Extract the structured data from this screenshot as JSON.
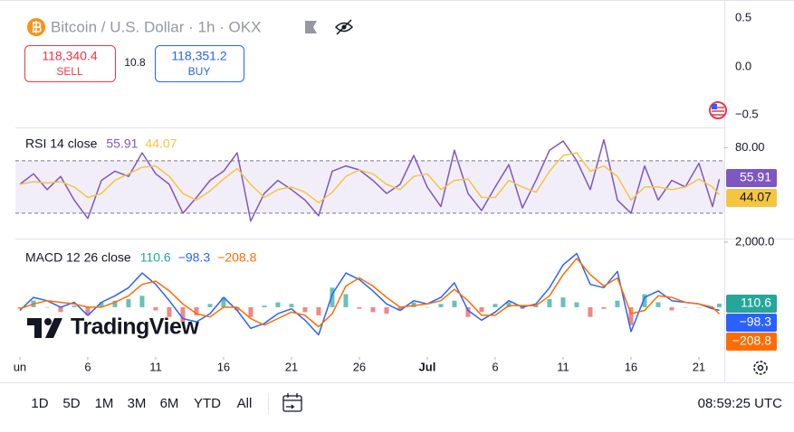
{
  "header": {
    "symbol": "Bitcoin / U.S. Dollar · 1h · OKX",
    "sell_price": "118,340.4",
    "sell_label": "SELL",
    "spread": "10.8",
    "buy_price": "118,351.2",
    "buy_label": "BUY"
  },
  "price_scale_labels": [
    "0.5",
    "0.0",
    "−0.5"
  ],
  "logo": "TradingView",
  "timeframes": [
    "1D",
    "5D",
    "1M",
    "3M",
    "6M",
    "YTD",
    "All"
  ],
  "clock": "08:59:25 UTC",
  "chart_data": [
    {
      "type": "line",
      "title": "RSI 14 close",
      "x": [
        1,
        2,
        3,
        4,
        5,
        6,
        7,
        8,
        9,
        10,
        11,
        12,
        13,
        14,
        15,
        16,
        17,
        18,
        19,
        20,
        21,
        22,
        23,
        24,
        25,
        26,
        27,
        28,
        29,
        30,
        31,
        32,
        33,
        34,
        35,
        36,
        37,
        38,
        39,
        40,
        41,
        42,
        43,
        44,
        45,
        46,
        47,
        48,
        49,
        50,
        51,
        52,
        52.5
      ],
      "xlim": [
        0.67,
        52.87
      ],
      "ylim": [
        12,
        94
      ],
      "yticks": [
        {
          "value": 80,
          "label": "80.00"
        }
      ],
      "bands": [
        70,
        30
      ],
      "band_color": "#7e57c2",
      "series": [
        {
          "name": "RSI",
          "color": "#7e57c2",
          "values": [
            52,
            60,
            48,
            58,
            40,
            26,
            55,
            62,
            58,
            76,
            60,
            52,
            30,
            42,
            55,
            62,
            76,
            24,
            45,
            55,
            48,
            40,
            28,
            62,
            66,
            63,
            55,
            45,
            52,
            74,
            50,
            35,
            78,
            45,
            32,
            50,
            67,
            34,
            55,
            78,
            85,
            70,
            48,
            86,
            40,
            30,
            66,
            40,
            55,
            50,
            68,
            35,
            55.91
          ]
        },
        {
          "name": "RSI MA",
          "color": "#f5c542",
          "values": [
            52,
            54,
            53,
            54,
            50,
            42,
            45,
            55,
            60,
            65,
            66,
            58,
            45,
            40,
            47,
            56,
            64,
            52,
            42,
            48,
            50,
            46,
            38,
            46,
            58,
            63,
            60,
            52,
            48,
            58,
            60,
            48,
            55,
            56,
            42,
            42,
            55,
            50,
            46,
            62,
            74,
            76,
            62,
            66,
            58,
            40,
            50,
            50,
            48,
            50,
            56,
            50,
            44.07
          ]
        }
      ]
    },
    {
      "type": "line",
      "title": "MACD 12 26 close",
      "x": [
        1,
        2,
        3,
        4,
        5,
        6,
        7,
        8,
        9,
        10,
        11,
        12,
        13,
        14,
        15,
        16,
        17,
        18,
        19,
        20,
        21,
        22,
        23,
        24,
        25,
        26,
        27,
        28,
        29,
        30,
        31,
        32,
        33,
        34,
        35,
        36,
        37,
        38,
        39,
        40,
        41,
        42,
        43,
        44,
        45,
        46,
        47,
        48,
        49,
        50,
        51,
        52,
        52.5
      ],
      "xlim": [
        0.67,
        52.87
      ],
      "ylim": [
        -1530,
        2080
      ],
      "yticks": [
        {
          "value": 2000,
          "label": "2,000.0"
        }
      ],
      "xticks": [
        {
          "value": 1,
          "label": "un"
        },
        6,
        11,
        16,
        21,
        26,
        {
          "value": 31,
          "label": "Jul"
        },
        {
          "value": 36,
          "label": "6"
        },
        {
          "value": 41,
          "label": "11"
        },
        {
          "value": 46,
          "label": "16"
        },
        {
          "value": 51,
          "label": "21"
        }
      ],
      "series": [
        {
          "name": "Histogram",
          "type": "bar",
          "color": "#26a69a",
          "negative_color": "#ef5350",
          "values": [
            -50,
            200,
            0,
            -150,
            50,
            -250,
            150,
            200,
            250,
            350,
            -100,
            -300,
            -450,
            -250,
            100,
            300,
            -100,
            -300,
            50,
            150,
            100,
            -150,
            -250,
            600,
            400,
            -50,
            -150,
            -200,
            -100,
            150,
            0,
            100,
            200,
            -300,
            -150,
            100,
            150,
            -50,
            50,
            250,
            300,
            150,
            -300,
            -50,
            200,
            -550,
            400,
            150,
            -100,
            0,
            0,
            -50,
            110.6
          ]
        },
        {
          "name": "MACD",
          "color": "#2962ff",
          "values": [
            -100,
            300,
            200,
            0,
            150,
            -250,
            150,
            350,
            600,
            1050,
            700,
            200,
            -350,
            -450,
            -200,
            300,
            -100,
            -650,
            -500,
            -200,
            -50,
            -400,
            -850,
            400,
            1050,
            850,
            500,
            100,
            -100,
            200,
            100,
            300,
            750,
            -100,
            -400,
            -150,
            200,
            0,
            100,
            600,
            1300,
            1650,
            700,
            600,
            1100,
            -750,
            300,
            500,
            200,
            150,
            100,
            -50,
            -98.3
          ],
          "value_labels": {
            "52": "−98.3"
          }
        },
        {
          "name": "Signal",
          "color": "#ff6d00",
          "values": [
            -50,
            100,
            200,
            150,
            100,
            0,
            0,
            150,
            350,
            700,
            800,
            500,
            100,
            -200,
            -300,
            0,
            0,
            -350,
            -550,
            -350,
            -150,
            -250,
            -600,
            -200,
            650,
            900,
            650,
            300,
            0,
            50,
            100,
            200,
            550,
            200,
            -250,
            -250,
            50,
            50,
            50,
            350,
            1000,
            1500,
            1000,
            650,
            900,
            -200,
            -100,
            350,
            300,
            150,
            100,
            0,
            -208.8
          ],
          "value_labels": {
            "52": "−208.8"
          }
        }
      ]
    }
  ]
}
